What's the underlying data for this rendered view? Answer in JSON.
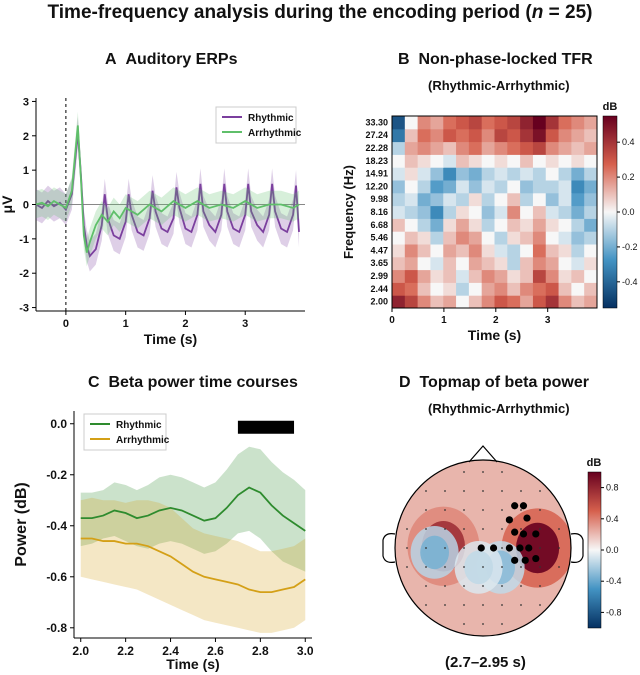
{
  "figure": {
    "title_prefix": "Time-frequency analysis during the encoding period (",
    "title_n": "n",
    "title_suffix": " = 25)"
  },
  "panels": {
    "A": {
      "letter": "A",
      "title": "Auditory ERPs"
    },
    "B": {
      "letter": "B",
      "title": "Non-phase-locked TFR",
      "subtitle": "(Rhythmic-Arrhythmic)"
    },
    "C": {
      "letter": "C",
      "title": "Beta power time courses"
    },
    "D": {
      "letter": "D",
      "title": "Topmap of beta power",
      "subtitle": "(Rhythmic-Arrhythmic)",
      "window": "(2.7–2.95 s)"
    }
  },
  "colors": {
    "rhythmic_a": "#7b3f9e",
    "arrhythmic_a": "#5fbf6a",
    "rhythmic_c": "#2e8b2e",
    "arrhythmic_c": "#d4a017",
    "sig_bar": "#000000"
  },
  "chart_data": [
    {
      "type": "line",
      "panel": "A",
      "xlabel": "Time (s)",
      "ylabel": "μV",
      "xlim": [
        -0.5,
        4.0
      ],
      "ylim": [
        -3.1,
        3.1
      ],
      "xticks": [
        0,
        1,
        2,
        3
      ],
      "yticks": [
        -3,
        -2,
        -1,
        0,
        1,
        2,
        3
      ],
      "legend_position": "top-right",
      "annotations": [
        "dashed vertical line at t = 0",
        "horizontal line at 0 μV"
      ],
      "series": [
        {
          "name": "Rhythmic",
          "x": [
            -0.5,
            -0.4,
            -0.3,
            -0.2,
            -0.1,
            0.0,
            0.1,
            0.2,
            0.25,
            0.3,
            0.35,
            0.4,
            0.5,
            0.6,
            0.65,
            0.7,
            0.8,
            0.9,
            1.0,
            1.05,
            1.1,
            1.2,
            1.3,
            1.4,
            1.45,
            1.5,
            1.6,
            1.7,
            1.8,
            1.85,
            1.9,
            2.0,
            2.1,
            2.2,
            2.25,
            2.3,
            2.4,
            2.5,
            2.6,
            2.65,
            2.7,
            2.8,
            2.9,
            3.0,
            3.05,
            3.1,
            3.2,
            3.3,
            3.4,
            3.45,
            3.5,
            3.6,
            3.7,
            3.8,
            3.85,
            3.9
          ],
          "values": [
            0.0,
            -0.1,
            0.1,
            -0.05,
            0.05,
            -0.15,
            0.3,
            2.1,
            0.9,
            -0.6,
            -1.2,
            -1.5,
            -1.3,
            -0.6,
            0.3,
            -0.4,
            -0.9,
            -1.0,
            -0.5,
            0.3,
            -0.3,
            -0.8,
            -0.9,
            -0.4,
            0.4,
            -0.2,
            -0.7,
            -0.8,
            -0.4,
            0.5,
            -0.1,
            -0.7,
            -0.8,
            -0.3,
            0.6,
            -0.2,
            -0.6,
            -0.8,
            -0.3,
            0.6,
            -0.2,
            -0.7,
            -0.8,
            -0.3,
            0.6,
            -0.2,
            -0.6,
            -0.8,
            -0.3,
            0.6,
            -0.2,
            -0.7,
            -0.8,
            -0.3,
            0.55,
            -0.8
          ],
          "ci_halfwidth": 0.45
        },
        {
          "name": "Arrhythmic",
          "x": [
            -0.5,
            -0.4,
            -0.3,
            -0.2,
            -0.1,
            0.0,
            0.1,
            0.2,
            0.25,
            0.3,
            0.35,
            0.4,
            0.5,
            0.6,
            0.7,
            0.8,
            0.9,
            1.0,
            1.2,
            1.4,
            1.6,
            1.8,
            2.0,
            2.2,
            2.4,
            2.6,
            2.8,
            3.0,
            3.2,
            3.4,
            3.6,
            3.8,
            3.9
          ],
          "values": [
            0.0,
            0.05,
            -0.05,
            0.1,
            0.0,
            -0.1,
            0.4,
            2.3,
            0.8,
            -0.9,
            -1.4,
            -1.1,
            -0.6,
            -0.3,
            -0.5,
            -0.2,
            -0.4,
            -0.1,
            -0.3,
            0.0,
            -0.2,
            0.1,
            -0.1,
            0.1,
            -0.1,
            0.0,
            -0.1,
            0.1,
            -0.1,
            0.0,
            0.0,
            -0.1,
            0.0
          ],
          "ci_halfwidth": 0.4
        }
      ]
    },
    {
      "type": "heatmap",
      "panel": "B",
      "xlabel": "Time (s)",
      "ylabel": "Frequency (Hz)",
      "xlim": [
        0,
        3.95
      ],
      "xticks": [
        0,
        1,
        2,
        3
      ],
      "y_labels": [
        "2.00",
        "2.44",
        "2.99",
        "3.65",
        "4.47",
        "5.46",
        "6.68",
        "8.16",
        "9.98",
        "12.20",
        "14.91",
        "18.23",
        "22.28",
        "27.24",
        "33.30"
      ],
      "colorbar": {
        "label": "dB",
        "ticks": [
          0.4,
          0.2,
          0.0,
          -0.2,
          -0.4
        ],
        "range": [
          -0.55,
          0.55
        ]
      },
      "values_note": "values approximate; per-row pattern in dB",
      "x_bins": [
        0.0,
        0.25,
        0.5,
        0.75,
        1.0,
        1.25,
        1.5,
        1.75,
        2.0,
        2.25,
        2.5,
        2.75,
        3.0,
        3.25,
        3.5,
        3.75
      ],
      "rows": [
        [
          0.45,
          0.35,
          0.2,
          0.1,
          0.15,
          0.0,
          0.1,
          0.2,
          0.3,
          0.25,
          0.15,
          0.3,
          0.4,
          0.2,
          0.1,
          0.15
        ],
        [
          0.3,
          0.25,
          0.1,
          0.0,
          0.05,
          -0.1,
          0.0,
          0.15,
          0.2,
          0.1,
          0.2,
          0.25,
          0.3,
          0.1,
          0.0,
          0.1
        ],
        [
          0.2,
          0.3,
          0.15,
          0.05,
          0.1,
          -0.05,
          0.1,
          0.2,
          0.15,
          0.05,
          0.1,
          0.35,
          0.2,
          0.05,
          0.1,
          0.0
        ],
        [
          0.1,
          0.15,
          0.0,
          -0.05,
          0.1,
          0.0,
          0.15,
          0.1,
          0.05,
          -0.1,
          0.1,
          0.2,
          0.15,
          0.0,
          -0.05,
          0.05
        ],
        [
          0.05,
          0.2,
          0.1,
          0.0,
          0.15,
          0.1,
          0.2,
          0.05,
          -0.05,
          -0.1,
          0.0,
          0.25,
          0.1,
          0.05,
          -0.1,
          0.0
        ],
        [
          0.0,
          0.1,
          0.05,
          -0.1,
          0.1,
          0.2,
          0.15,
          0.0,
          -0.1,
          0.05,
          0.1,
          0.2,
          0.0,
          -0.05,
          -0.15,
          -0.1
        ],
        [
          0.1,
          0.0,
          -0.1,
          -0.2,
          0.05,
          0.15,
          0.05,
          -0.1,
          0.0,
          0.1,
          0.05,
          0.15,
          0.05,
          0.0,
          -0.1,
          -0.2
        ],
        [
          -0.05,
          -0.1,
          -0.15,
          -0.3,
          -0.1,
          0.05,
          0.0,
          -0.15,
          -0.05,
          0.2,
          0.0,
          0.1,
          -0.05,
          -0.1,
          -0.2,
          -0.1
        ],
        [
          -0.1,
          -0.05,
          -0.2,
          -0.15,
          -0.05,
          -0.1,
          0.05,
          -0.1,
          0.0,
          0.1,
          -0.1,
          0.0,
          -0.15,
          -0.05,
          -0.25,
          -0.15
        ],
        [
          -0.15,
          0.0,
          -0.1,
          -0.25,
          -0.2,
          -0.05,
          -0.15,
          -0.05,
          -0.1,
          0.0,
          -0.15,
          -0.1,
          -0.1,
          -0.05,
          -0.3,
          -0.2
        ],
        [
          -0.05,
          0.05,
          -0.05,
          -0.15,
          -0.3,
          -0.15,
          -0.2,
          -0.1,
          -0.05,
          -0.1,
          -0.05,
          -0.1,
          0.0,
          -0.1,
          -0.2,
          -0.1
        ],
        [
          0.0,
          0.1,
          0.05,
          0.0,
          -0.05,
          0.1,
          0.05,
          0.0,
          0.05,
          0.0,
          0.1,
          0.0,
          0.05,
          0.0,
          0.05,
          0.0
        ],
        [
          -0.1,
          0.15,
          0.2,
          0.15,
          0.1,
          0.2,
          0.25,
          0.15,
          0.2,
          0.25,
          0.3,
          0.35,
          0.2,
          0.15,
          0.1,
          0.15
        ],
        [
          -0.35,
          0.1,
          0.25,
          0.2,
          0.3,
          0.25,
          0.3,
          0.2,
          0.35,
          0.3,
          0.4,
          0.5,
          0.3,
          0.2,
          0.15,
          0.1
        ],
        [
          -0.45,
          0.0,
          0.2,
          0.15,
          0.25,
          0.3,
          0.35,
          0.25,
          0.3,
          0.35,
          0.45,
          0.55,
          0.4,
          0.25,
          0.2,
          0.15
        ]
      ]
    },
    {
      "type": "line",
      "panel": "C",
      "xlabel": "Time (s)",
      "ylabel": "Power (dB)",
      "xlim": [
        1.97,
        3.03
      ],
      "ylim": [
        -0.84,
        0.05
      ],
      "xticks": [
        2.0,
        2.2,
        2.4,
        2.6,
        2.8,
        3.0
      ],
      "yticks": [
        0.0,
        -0.2,
        -0.4,
        -0.6,
        -0.8
      ],
      "legend_position": "top-left",
      "significance_bar": {
        "x_start": 2.7,
        "x_end": 2.95,
        "y": 0.0
      },
      "series": [
        {
          "name": "Rhythmic",
          "x": [
            2.0,
            2.05,
            2.1,
            2.15,
            2.2,
            2.25,
            2.3,
            2.35,
            2.4,
            2.45,
            2.5,
            2.55,
            2.6,
            2.65,
            2.7,
            2.75,
            2.8,
            2.85,
            2.9,
            2.95,
            3.0
          ],
          "values": [
            -0.37,
            -0.37,
            -0.36,
            -0.34,
            -0.35,
            -0.37,
            -0.36,
            -0.34,
            -0.33,
            -0.34,
            -0.36,
            -0.38,
            -0.37,
            -0.33,
            -0.28,
            -0.25,
            -0.27,
            -0.32,
            -0.36,
            -0.39,
            -0.42
          ],
          "ci_lower": [
            -0.48,
            -0.47,
            -0.45,
            -0.44,
            -0.46,
            -0.48,
            -0.49,
            -0.47,
            -0.46,
            -0.47,
            -0.49,
            -0.51,
            -0.5,
            -0.47,
            -0.43,
            -0.42,
            -0.45,
            -0.5,
            -0.54,
            -0.56,
            -0.58
          ],
          "ci_upper": [
            -0.27,
            -0.27,
            -0.26,
            -0.23,
            -0.24,
            -0.26,
            -0.24,
            -0.21,
            -0.2,
            -0.21,
            -0.23,
            -0.25,
            -0.23,
            -0.18,
            -0.12,
            -0.09,
            -0.1,
            -0.15,
            -0.19,
            -0.22,
            -0.26
          ]
        },
        {
          "name": "Arrhythmic",
          "x": [
            2.0,
            2.05,
            2.1,
            2.15,
            2.2,
            2.25,
            2.3,
            2.35,
            2.4,
            2.45,
            2.5,
            2.55,
            2.6,
            2.65,
            2.7,
            2.75,
            2.8,
            2.85,
            2.9,
            2.95,
            3.0
          ],
          "values": [
            -0.45,
            -0.45,
            -0.46,
            -0.46,
            -0.47,
            -0.47,
            -0.48,
            -0.5,
            -0.52,
            -0.55,
            -0.58,
            -0.6,
            -0.61,
            -0.62,
            -0.63,
            -0.65,
            -0.66,
            -0.66,
            -0.65,
            -0.64,
            -0.61
          ],
          "ci_lower": [
            -0.6,
            -0.61,
            -0.62,
            -0.63,
            -0.64,
            -0.65,
            -0.67,
            -0.69,
            -0.71,
            -0.73,
            -0.75,
            -0.77,
            -0.78,
            -0.79,
            -0.8,
            -0.81,
            -0.82,
            -0.82,
            -0.81,
            -0.8,
            -0.77
          ],
          "ci_upper": [
            -0.3,
            -0.29,
            -0.3,
            -0.3,
            -0.31,
            -0.3,
            -0.3,
            -0.31,
            -0.33,
            -0.37,
            -0.41,
            -0.43,
            -0.44,
            -0.45,
            -0.46,
            -0.48,
            -0.5,
            -0.5,
            -0.49,
            -0.48,
            -0.45
          ]
        }
      ]
    },
    {
      "type": "heatmap",
      "panel": "D",
      "description_type": "scalp topographic map",
      "colorbar": {
        "label": "dB",
        "ticks": [
          0.8,
          0.4,
          0.0,
          -0.4,
          -0.8
        ],
        "range": [
          -1.0,
          1.0
        ]
      },
      "blobs_note": "values in dB at approximate scalp locations (normalized head coordinates)",
      "blobs": [
        {
          "u": 0.62,
          "v": 0.5,
          "value": 1.0
        },
        {
          "u": -0.45,
          "v": 0.48,
          "value": 0.75
        },
        {
          "u": -0.55,
          "v": 0.55,
          "value": -0.35
        },
        {
          "u": 0.2,
          "v": 0.72,
          "value": -0.3
        },
        {
          "u": -0.05,
          "v": 0.72,
          "value": -0.15
        }
      ],
      "significant_electrodes_note": "large dots mark significant electrodes"
    }
  ]
}
